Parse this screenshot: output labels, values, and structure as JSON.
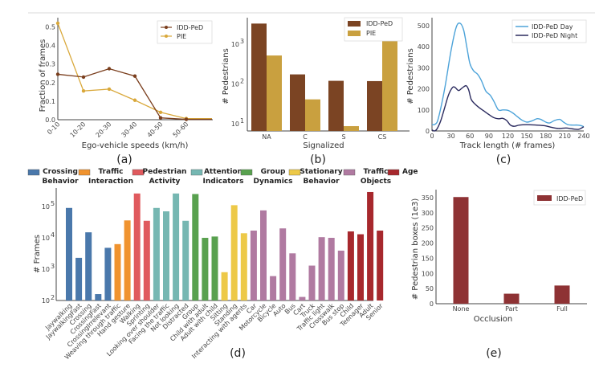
{
  "chart_data": [
    {
      "id": "a",
      "type": "line",
      "caption": "(a)",
      "xlabel": "Ego-vehicle speeds (km/h)",
      "ylabel": "Fraction of frames",
      "categories": [
        "0-10",
        "10-20",
        "20-30",
        "30-40",
        "40-50",
        "50-60",
        ""
      ],
      "ylim": [
        0,
        0.55
      ],
      "yticks": [
        "0.0",
        "0.1",
        "0.2",
        "0.3",
        "0.4",
        "0.5"
      ],
      "ytick_values": [
        0,
        0.1,
        0.2,
        0.3,
        0.4,
        0.5
      ],
      "legend_position": "top-right",
      "series": [
        {
          "name": "IDD-PeD",
          "color": "#7a3e1d",
          "values": [
            0.245,
            0.23,
            0.275,
            0.235,
            0.01,
            0.002,
            0.002
          ]
        },
        {
          "name": "PIE",
          "color": "#d9a83a",
          "values": [
            0.52,
            0.155,
            0.165,
            0.105,
            0.04,
            0.006,
            0.006
          ]
        }
      ]
    },
    {
      "id": "b",
      "type": "bar",
      "scale": "log",
      "caption": "(b)",
      "xlabel": "Signalized",
      "ylabel": "# Pedestrians",
      "categories": [
        "NA",
        "C",
        "S",
        "CS"
      ],
      "ylim": [
        7,
        5000
      ],
      "yticks": [
        "10",
        "10",
        "10"
      ],
      "ytick_exponents": [
        "1",
        "2",
        "3"
      ],
      "ytick_values": [
        10,
        100,
        1000
      ],
      "legend_position": "top-right",
      "series": [
        {
          "name": "IDD-PeD",
          "color": "#7b4423",
          "values": [
            3300,
            174,
            120,
            118
          ]
        },
        {
          "name": "PIE",
          "color": "#c9a03f",
          "values": [
            520,
            41,
            8.7,
            1250
          ]
        }
      ]
    },
    {
      "id": "c",
      "type": "line",
      "caption": "(c)",
      "xlabel": "Track length (# frames)",
      "ylabel": "# Pedestrians",
      "xlim": [
        0,
        240
      ],
      "ylim": [
        0,
        540
      ],
      "xticks": [
        "0",
        "30",
        "60",
        "90",
        "120",
        "150",
        "180",
        "210",
        "240"
      ],
      "xtick_values": [
        0,
        30,
        60,
        90,
        120,
        150,
        180,
        210,
        240
      ],
      "yticks": [
        "0",
        "100",
        "200",
        "300",
        "400",
        "500"
      ],
      "ytick_values": [
        0,
        100,
        200,
        300,
        400,
        500
      ],
      "legend_position": "top-right",
      "series": [
        {
          "name": "IDD-PeD Day",
          "color": "#4da3d9",
          "x": [
            0,
            5,
            10,
            20,
            30,
            38,
            44,
            50,
            55,
            60,
            66,
            72,
            78,
            85,
            92,
            98,
            105,
            112,
            120,
            128,
            135,
            142,
            150,
            158,
            166,
            172,
            180,
            186,
            194,
            202,
            208,
            215,
            222,
            230,
            236,
            240
          ],
          "values": [
            30,
            32,
            60,
            200,
            380,
            490,
            512,
            480,
            400,
            320,
            285,
            270,
            240,
            190,
            170,
            140,
            100,
            100,
            98,
            85,
            68,
            52,
            42,
            48,
            58,
            55,
            42,
            38,
            50,
            55,
            42,
            30,
            28,
            28,
            25,
            20
          ]
        },
        {
          "name": "IDD-PeD Night",
          "color": "#2a2a5e",
          "x": [
            0,
            4,
            8,
            14,
            20,
            26,
            32,
            36,
            42,
            48,
            54,
            58,
            62,
            68,
            75,
            82,
            90,
            98,
            105,
            112,
            118,
            124,
            130,
            138,
            150,
            165,
            178,
            188,
            200,
            212,
            222,
            232,
            240
          ],
          "values": [
            5,
            0,
            10,
            50,
            110,
            170,
            205,
            208,
            192,
            205,
            215,
            195,
            150,
            128,
            110,
            95,
            78,
            63,
            58,
            60,
            50,
            28,
            22,
            28,
            30,
            28,
            25,
            18,
            12,
            14,
            10,
            8,
            20
          ]
        }
      ]
    },
    {
      "id": "d",
      "type": "bar",
      "scale": "log",
      "caption": "(d)",
      "xlabel": "",
      "ylabel": "# Frames",
      "ylim": [
        100,
        400000
      ],
      "yticks": [
        "10",
        "10",
        "10",
        "10"
      ],
      "ytick_exponents": [
        "2",
        "3",
        "4",
        "5"
      ],
      "ytick_values": [
        100,
        1000,
        10000,
        100000
      ],
      "legend_position": "top",
      "groups": [
        {
          "name_line1": "Crossing",
          "name_line2": "Behavior",
          "color": "#4a78ab"
        },
        {
          "name_line1": "Traffic",
          "name_line2": "Interaction",
          "color": "#f0932f"
        },
        {
          "name_line1": "Pedestrian",
          "name_line2": "Activity",
          "color": "#e05a5e"
        },
        {
          "name_line1": "Attention",
          "name_line2": "Indicators",
          "color": "#76b7b2"
        },
        {
          "name_line1": "Group",
          "name_line2": "Dynamics",
          "color": "#59a14f"
        },
        {
          "name_line1": "Stationary",
          "name_line2": "Behavior",
          "color": "#edc948"
        },
        {
          "name_line1": "Traffic",
          "name_line2": "Objects",
          "color": "#b07aa1"
        },
        {
          "name_line1": "Age",
          "name_line2": "",
          "color": "#a7282d"
        }
      ],
      "categories": [
        "Jaywalking",
        "JaywalkingFast",
        "Crossing",
        "CrossingFast",
        "CrossingIrrelevant",
        "Weaving through traffic",
        "Hand gesture",
        "Walking",
        "Sprinting",
        "Looking over shoulder",
        "Facing the traffic",
        "Not looking",
        "Distracted",
        "Group",
        "Child with adult",
        "Adult with child",
        "Sitting",
        "Standing",
        "Interacting with agents",
        "Car",
        "Motorcycle",
        "Bicycle",
        "Auto",
        "Bus",
        "Cart",
        "Truck",
        "Traffic light",
        "Crosswalk",
        "Bus stop",
        "Child",
        "Teenager",
        "Adult",
        "Senior"
      ],
      "category_groups": [
        0,
        0,
        0,
        0,
        0,
        1,
        1,
        2,
        2,
        3,
        3,
        3,
        3,
        4,
        4,
        4,
        5,
        5,
        5,
        6,
        6,
        6,
        6,
        6,
        6,
        6,
        6,
        6,
        6,
        7,
        7,
        7,
        7
      ],
      "values": [
        90000,
        2300,
        15000,
        160,
        4800,
        6300,
        36000,
        260000,
        35000,
        90000,
        70000,
        260000,
        35000,
        250000,
        10000,
        11000,
        800,
        110000,
        14000,
        17000,
        75000,
        600,
        20000,
        3200,
        130,
        1300,
        10500,
        10000,
        3900,
        16000,
        13000,
        290000,
        17000
      ]
    },
    {
      "id": "e",
      "type": "bar",
      "caption": "(e)",
      "xlabel": "Occlusion",
      "ylabel": "# Pedestrian boxes (1e3)",
      "categories": [
        "None",
        "Part",
        "Full"
      ],
      "ylim": [
        0,
        370
      ],
      "yticks": [
        "0",
        "50",
        "100",
        "150",
        "200",
        "250",
        "300",
        "350"
      ],
      "ytick_values": [
        0,
        50,
        100,
        150,
        200,
        250,
        300,
        350
      ],
      "legend_position": "top-right",
      "series": [
        {
          "name": "IDD-PeD",
          "color": "#8e3234",
          "values": [
            352,
            33,
            60
          ]
        }
      ]
    }
  ]
}
